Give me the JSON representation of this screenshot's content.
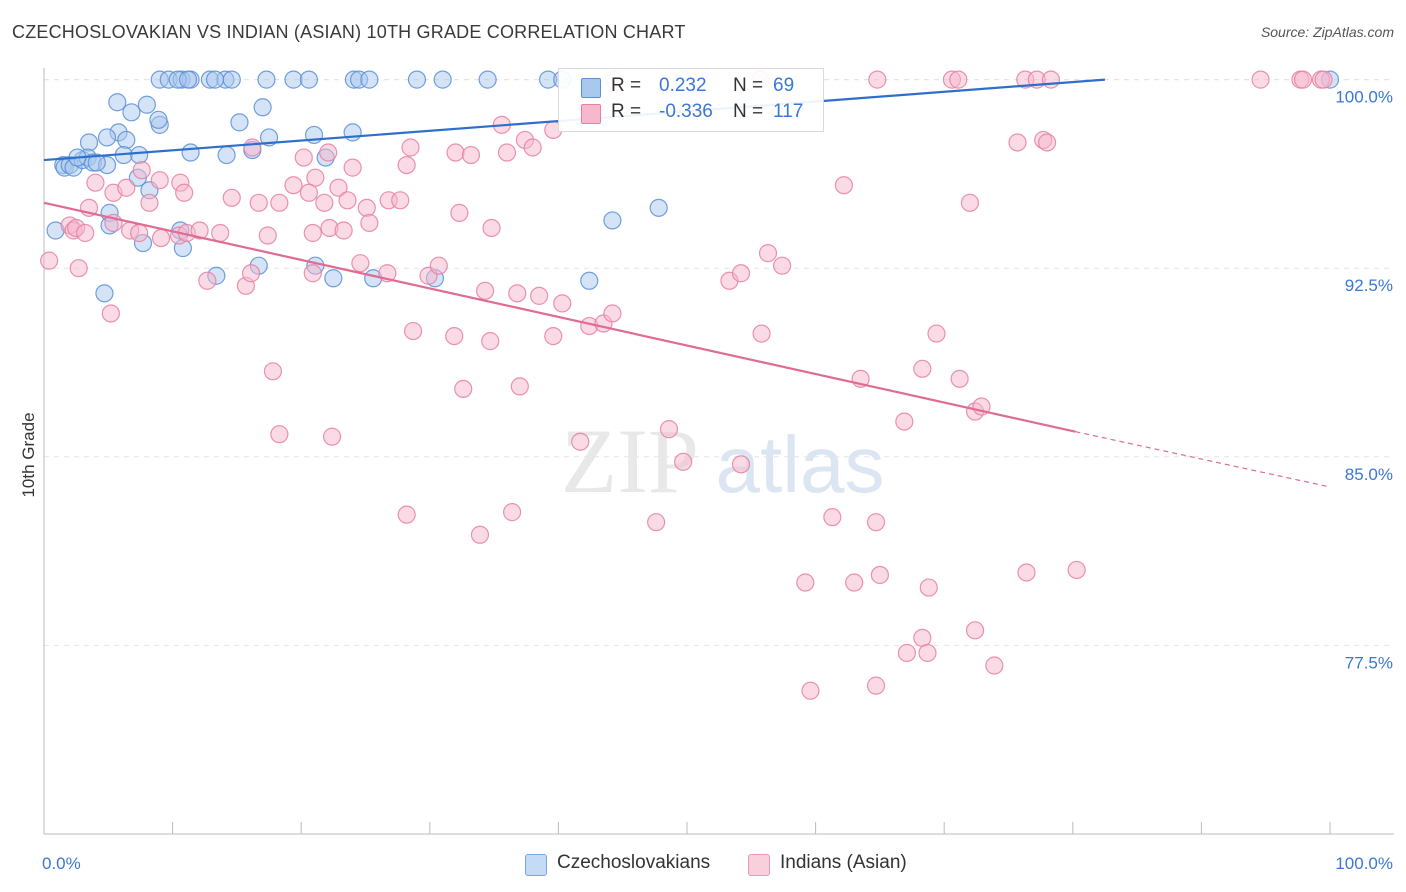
{
  "title": "CZECHOSLOVAKIAN VS INDIAN (ASIAN) 10TH GRADE CORRELATION CHART",
  "source": "Source: ZipAtlas.com",
  "watermark": {
    "zip": "ZIP",
    "atlas": "atlas"
  },
  "legend": {
    "czech": {
      "r_label": "R =",
      "r_value": "0.232",
      "n_label": "N =",
      "n_value": "69"
    },
    "indian": {
      "r_label": "R =",
      "r_value": "-0.336",
      "n_label": "N =",
      "n_value": "117"
    }
  },
  "bottom_legend": {
    "czech": "Czechoslovakians",
    "indian": "Indians (Asian)"
  },
  "colors": {
    "czech_fill": "#a9c8ee",
    "czech_stroke": "#5a8fd8",
    "czech_line": "#2f6fcc",
    "indian_fill": "#f5b8cc",
    "indian_stroke": "#e87fa2",
    "indian_line": "#e06b95",
    "tick_label": "#3a78d4",
    "grid": "#e3e3e3",
    "axis": "#bbbbbb"
  },
  "chart_data": {
    "type": "scatter",
    "title": "CZECHOSLOVAKIAN VS INDIAN (ASIAN) 10TH GRADE CORRELATION CHART",
    "xlabel": "",
    "ylabel": "10th Grade",
    "xlim": [
      0,
      100
    ],
    "ylim": [
      70.0,
      100.7
    ],
    "x_tick_labels": [
      {
        "value": 0,
        "label": "0.0%"
      },
      {
        "value": 100,
        "label": "100.0%"
      }
    ],
    "y_ticks": [
      {
        "value": 100.0,
        "label": "100.0%"
      },
      {
        "value": 92.5,
        "label": "92.5%"
      },
      {
        "value": 85.0,
        "label": "85.0%"
      },
      {
        "value": 77.5,
        "label": "77.5%"
      }
    ],
    "series": [
      {
        "name": "Czechoslovakians",
        "points": [
          [
            9.0,
            100
          ],
          [
            9.7,
            100
          ],
          [
            10.7,
            100
          ],
          [
            11.4,
            100
          ],
          [
            12.9,
            100
          ],
          [
            14.1,
            100
          ],
          [
            17.3,
            100
          ],
          [
            19.4,
            100
          ],
          [
            20.6,
            100
          ],
          [
            24.1,
            100
          ],
          [
            24.5,
            100
          ],
          [
            25.3,
            100
          ],
          [
            29.0,
            100
          ],
          [
            31.0,
            100
          ],
          [
            34.5,
            100
          ],
          [
            39.2,
            100
          ],
          [
            40.3,
            100
          ],
          [
            49.7,
            100
          ],
          [
            100.0,
            100
          ],
          [
            8.0,
            99.0
          ],
          [
            9.0,
            98.2
          ],
          [
            10.4,
            100
          ],
          [
            11.2,
            100
          ],
          [
            13.3,
            100
          ],
          [
            14.6,
            100
          ],
          [
            5.7,
            99.1
          ],
          [
            6.8,
            98.7
          ],
          [
            8.9,
            98.4
          ],
          [
            5.8,
            97.9
          ],
          [
            4.9,
            97.7
          ],
          [
            6.4,
            97.6
          ],
          [
            3.5,
            97.5
          ],
          [
            15.2,
            98.3
          ],
          [
            17.0,
            98.9
          ],
          [
            17.5,
            97.7
          ],
          [
            21.0,
            97.8
          ],
          [
            24.0,
            97.9
          ],
          [
            16.2,
            97.2
          ],
          [
            14.2,
            97.0
          ],
          [
            1.5,
            96.6
          ],
          [
            1.6,
            96.5
          ],
          [
            2.0,
            96.6
          ],
          [
            2.3,
            96.5
          ],
          [
            3.0,
            96.8
          ],
          [
            3.4,
            96.9
          ],
          [
            3.8,
            96.7
          ],
          [
            4.9,
            96.6
          ],
          [
            4.1,
            96.7
          ],
          [
            6.2,
            97.0
          ],
          [
            7.4,
            97.0
          ],
          [
            2.6,
            96.9
          ],
          [
            11.4,
            97.1
          ],
          [
            21.9,
            96.9
          ],
          [
            7.3,
            96.1
          ],
          [
            8.2,
            95.6
          ],
          [
            5.1,
            94.7
          ],
          [
            5.1,
            94.2
          ],
          [
            7.7,
            93.5
          ],
          [
            10.8,
            93.3
          ],
          [
            10.6,
            94.0
          ],
          [
            0.9,
            94.0
          ],
          [
            13.4,
            92.2
          ],
          [
            16.7,
            92.6
          ],
          [
            21.1,
            92.6
          ],
          [
            22.5,
            92.1
          ],
          [
            25.6,
            92.1
          ],
          [
            30.4,
            92.1
          ],
          [
            42.4,
            92.0
          ],
          [
            44.2,
            94.4
          ],
          [
            47.8,
            94.9
          ],
          [
            4.7,
            91.5
          ]
        ]
      },
      {
        "name": "Indians (Asian)",
        "points": [
          [
            44.3,
            100
          ],
          [
            55.7,
            100
          ],
          [
            64.8,
            100
          ],
          [
            70.6,
            100
          ],
          [
            71.1,
            100
          ],
          [
            76.3,
            100
          ],
          [
            77.2,
            100
          ],
          [
            78.3,
            100
          ],
          [
            94.6,
            100
          ],
          [
            97.7,
            100
          ],
          [
            97.9,
            100
          ],
          [
            99.3,
            100
          ],
          [
            99.5,
            100
          ],
          [
            35.6,
            98.2
          ],
          [
            39.6,
            98.0
          ],
          [
            37.4,
            97.6
          ],
          [
            38.0,
            97.3
          ],
          [
            28.5,
            97.3
          ],
          [
            32.0,
            97.1
          ],
          [
            33.2,
            97.0
          ],
          [
            36.0,
            97.1
          ],
          [
            28.2,
            96.6
          ],
          [
            20.2,
            96.9
          ],
          [
            16.2,
            97.3
          ],
          [
            22.1,
            97.1
          ],
          [
            24.0,
            96.5
          ],
          [
            21.1,
            96.1
          ],
          [
            7.6,
            96.4
          ],
          [
            4.0,
            95.9
          ],
          [
            5.4,
            95.5
          ],
          [
            6.4,
            95.7
          ],
          [
            8.2,
            95.1
          ],
          [
            9.0,
            96.0
          ],
          [
            10.6,
            95.9
          ],
          [
            10.9,
            95.5
          ],
          [
            14.6,
            95.3
          ],
          [
            16.7,
            95.1
          ],
          [
            18.3,
            95.1
          ],
          [
            19.4,
            95.8
          ],
          [
            20.6,
            95.5
          ],
          [
            21.8,
            95.1
          ],
          [
            22.9,
            95.7
          ],
          [
            23.6,
            95.2
          ],
          [
            25.1,
            94.9
          ],
          [
            26.8,
            95.2
          ],
          [
            27.7,
            95.2
          ],
          [
            32.3,
            94.7
          ],
          [
            34.8,
            94.1
          ],
          [
            2.0,
            94.2
          ],
          [
            2.3,
            94.0
          ],
          [
            2.5,
            94.1
          ],
          [
            3.2,
            93.9
          ],
          [
            3.5,
            94.9
          ],
          [
            5.4,
            94.3
          ],
          [
            6.7,
            94.0
          ],
          [
            7.4,
            93.9
          ],
          [
            9.1,
            93.7
          ],
          [
            10.5,
            93.8
          ],
          [
            11.1,
            93.9
          ],
          [
            12.1,
            94.0
          ],
          [
            13.7,
            93.9
          ],
          [
            17.4,
            93.8
          ],
          [
            20.9,
            93.9
          ],
          [
            22.2,
            94.1
          ],
          [
            23.3,
            94.0
          ],
          [
            25.3,
            94.3
          ],
          [
            0.4,
            92.8
          ],
          [
            2.7,
            92.5
          ],
          [
            12.7,
            92.0
          ],
          [
            15.7,
            91.8
          ],
          [
            16.1,
            92.3
          ],
          [
            20.9,
            92.3
          ],
          [
            24.6,
            92.7
          ],
          [
            26.7,
            92.3
          ],
          [
            29.9,
            92.2
          ],
          [
            30.7,
            92.6
          ],
          [
            34.3,
            91.6
          ],
          [
            36.8,
            91.5
          ],
          [
            38.5,
            91.4
          ],
          [
            40.3,
            91.1
          ],
          [
            42.4,
            90.2
          ],
          [
            43.5,
            90.3
          ],
          [
            44.2,
            90.7
          ],
          [
            53.3,
            92.0
          ],
          [
            54.2,
            92.3
          ],
          [
            56.3,
            93.1
          ],
          [
            57.4,
            92.6
          ],
          [
            62.2,
            95.8
          ],
          [
            72.0,
            95.1
          ],
          [
            77.7,
            97.6
          ],
          [
            5.2,
            90.7
          ],
          [
            28.7,
            90.0
          ],
          [
            31.9,
            89.8
          ],
          [
            34.7,
            89.6
          ],
          [
            39.6,
            89.8
          ],
          [
            55.8,
            89.9
          ],
          [
            63.5,
            88.1
          ],
          [
            68.3,
            88.5
          ],
          [
            71.2,
            88.1
          ],
          [
            69.4,
            89.9
          ],
          [
            75.7,
            97.5
          ],
          [
            78.0,
            97.5
          ],
          [
            72.4,
            86.8
          ],
          [
            72.9,
            87.0
          ],
          [
            66.9,
            86.4
          ],
          [
            17.8,
            88.4
          ],
          [
            32.6,
            87.7
          ],
          [
            37.0,
            87.8
          ],
          [
            41.7,
            85.6
          ],
          [
            48.6,
            86.1
          ],
          [
            49.7,
            84.8
          ],
          [
            54.2,
            84.7
          ],
          [
            18.3,
            85.9
          ],
          [
            22.4,
            85.8
          ],
          [
            28.2,
            82.7
          ],
          [
            33.9,
            81.9
          ],
          [
            36.4,
            82.8
          ],
          [
            47.6,
            82.4
          ],
          [
            61.3,
            82.6
          ],
          [
            64.7,
            82.4
          ],
          [
            65.0,
            80.3
          ],
          [
            76.4,
            80.4
          ],
          [
            80.3,
            80.5
          ],
          [
            59.2,
            80.0
          ],
          [
            63.0,
            80.0
          ],
          [
            68.8,
            79.8
          ],
          [
            72.4,
            78.1
          ],
          [
            68.3,
            77.8
          ],
          [
            68.7,
            77.2
          ],
          [
            67.1,
            77.2
          ],
          [
            73.9,
            76.7
          ],
          [
            64.7,
            75.9
          ],
          [
            59.6,
            75.7
          ]
        ]
      }
    ],
    "trend_lines": [
      {
        "name": "Czechoslovakians",
        "x": [
          0,
          82.5
        ],
        "y": [
          96.8,
          100.0
        ]
      },
      {
        "name": "Indians (Asian)",
        "x": [
          0,
          80.2
        ],
        "y": [
          95.1,
          86.0
        ]
      },
      {
        "name": "Indians (Asian) extrapolated",
        "x": [
          80.2,
          100
        ],
        "y": [
          86.0,
          83.8
        ]
      }
    ]
  }
}
